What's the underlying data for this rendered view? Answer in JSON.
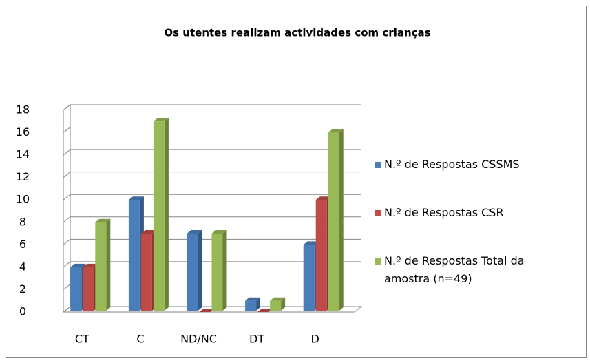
{
  "chart_data": {
    "type": "bar3d",
    "title": "Os utentes realizam actividades com crianças",
    "categories": [
      "CT",
      "C",
      "ND/NC",
      "DT",
      "D"
    ],
    "series": [
      {
        "name": "N.º de Respostas CSSMS",
        "color": "#4a7ebb",
        "values": [
          4,
          10,
          7,
          1,
          6
        ]
      },
      {
        "name": "N.º de Respostas CSR",
        "color": "#be4b48",
        "values": [
          4,
          7,
          0,
          0,
          10
        ]
      },
      {
        "name": "N.º de Respostas Total da amostra (n=49)",
        "color": "#98b954",
        "values": [
          8,
          17,
          7,
          1,
          16
        ]
      }
    ],
    "ylim": [
      0,
      18
    ],
    "yticks": [
      0,
      2,
      4,
      6,
      8,
      10,
      12,
      14,
      16,
      18
    ],
    "grid": true,
    "legend": "right"
  }
}
